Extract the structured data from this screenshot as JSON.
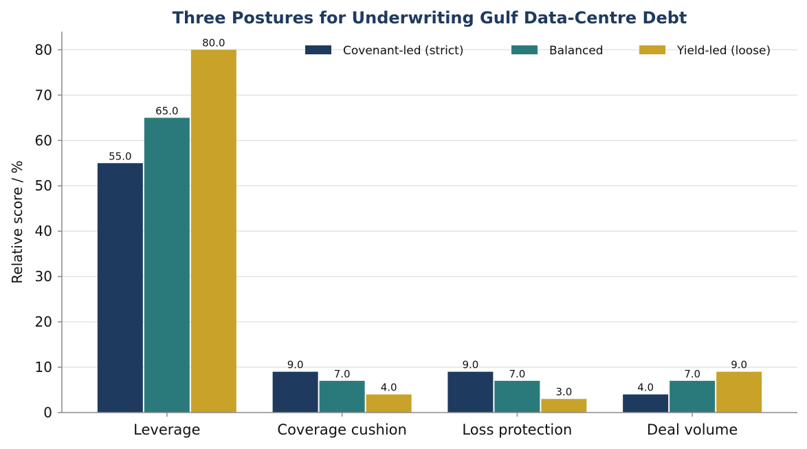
{
  "chart_data": {
    "type": "bar",
    "title": "Three Postures for Underwriting Gulf Data-Centre Debt",
    "xlabel": "",
    "ylabel": "Relative score / %",
    "ylim": [
      0,
      84
    ],
    "yticks": [
      0,
      10,
      20,
      30,
      40,
      50,
      60,
      70,
      80
    ],
    "grid": true,
    "legend_position": "top-right",
    "categories": [
      "Leverage",
      "Coverage cushion",
      "Loss protection",
      "Deal volume"
    ],
    "series": [
      {
        "name": "Covenant-led (strict)",
        "color": "#1f3a5f",
        "values": [
          55.0,
          9.0,
          9.0,
          4.0
        ],
        "labels": [
          "55.0",
          "9.0",
          "9.0",
          "4.0"
        ]
      },
      {
        "name": "Balanced",
        "color": "#2b7a7b",
        "values": [
          65.0,
          7.0,
          7.0,
          7.0
        ],
        "labels": [
          "65.0",
          "7.0",
          "7.0",
          "7.0"
        ]
      },
      {
        "name": "Yield-led (loose)",
        "color": "#c9a22a",
        "values": [
          80.0,
          4.0,
          3.0,
          9.0
        ],
        "labels": [
          "80.0",
          "4.0",
          "3.0",
          "9.0"
        ]
      }
    ]
  }
}
